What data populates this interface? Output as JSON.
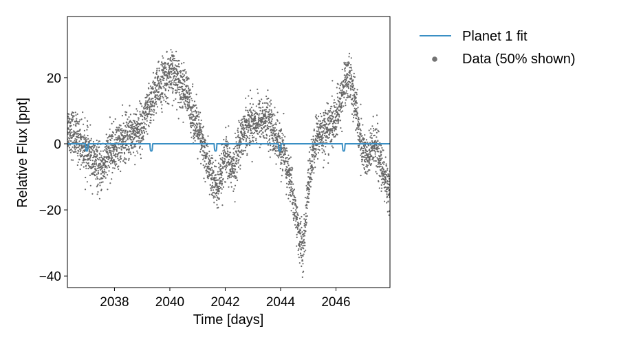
{
  "chart_data": {
    "type": "scatter",
    "xlabel": "Time [days]",
    "ylabel": "Relative Flux [ppt]",
    "xlim": [
      2036.3,
      2047.95
    ],
    "ylim": [
      -43.5,
      38.5
    ],
    "xticks": [
      2038,
      2040,
      2042,
      2044,
      2046
    ],
    "yticks": [
      -40,
      -20,
      0,
      20
    ],
    "xtick_labels": [
      "2038",
      "2040",
      "2042",
      "2044",
      "2046"
    ],
    "ytick_labels": [
      "−40",
      "−20",
      "0",
      "20"
    ],
    "grid": false,
    "legend_position": "outside-right-top",
    "series": [
      {
        "name": "Planet 1 fit",
        "kind": "line",
        "color": "#3a8fc4",
        "baseline": 0,
        "transit_times": [
          2037.0,
          2039.33,
          2041.65,
          2043.97,
          2046.28
        ],
        "transit_depth": -2.2,
        "transit_duration": 0.1
      },
      {
        "name": "Data (50% shown)",
        "kind": "scatter",
        "color": "#000000",
        "trend": [
          [
            2036.3,
            5
          ],
          [
            2036.6,
            2
          ],
          [
            2036.9,
            -1
          ],
          [
            2037.2,
            -5
          ],
          [
            2037.5,
            -8
          ],
          [
            2037.8,
            -3
          ],
          [
            2038.2,
            0
          ],
          [
            2038.6,
            3
          ],
          [
            2039.0,
            5
          ],
          [
            2039.4,
            14
          ],
          [
            2039.8,
            20
          ],
          [
            2040.2,
            21
          ],
          [
            2040.6,
            15
          ],
          [
            2040.9,
            7
          ],
          [
            2041.2,
            -1
          ],
          [
            2041.5,
            -10
          ],
          [
            2041.75,
            -14
          ],
          [
            2042.0,
            -4
          ],
          [
            2042.3,
            -8
          ],
          [
            2042.55,
            2
          ],
          [
            2042.8,
            6
          ],
          [
            2043.2,
            7
          ],
          [
            2043.6,
            7
          ],
          [
            2043.85,
            1
          ],
          [
            2044.1,
            -3
          ],
          [
            2044.4,
            -13
          ],
          [
            2044.65,
            -27
          ],
          [
            2044.82,
            -33
          ],
          [
            2045.0,
            -12
          ],
          [
            2045.3,
            2
          ],
          [
            2045.6,
            4
          ],
          [
            2045.9,
            6
          ],
          [
            2046.1,
            10
          ],
          [
            2046.3,
            18
          ],
          [
            2046.5,
            21
          ],
          [
            2046.7,
            12
          ],
          [
            2046.9,
            0
          ],
          [
            2047.15,
            -5
          ],
          [
            2047.4,
            1
          ],
          [
            2047.65,
            -8
          ],
          [
            2047.95,
            -14
          ]
        ],
        "scatter_ppt": 3.5,
        "n_points": 4200
      }
    ]
  }
}
